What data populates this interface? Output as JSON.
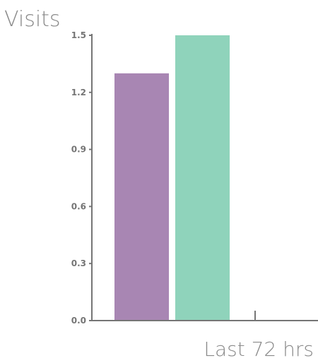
{
  "chart_data": {
    "type": "bar",
    "categories": [
      "",
      ""
    ],
    "values": [
      1.3,
      1.5
    ],
    "colors": [
      "#a886b3",
      "#8fd3bb"
    ],
    "title": "",
    "ylabel": "Visits",
    "xlabel": "Last 72 hrs",
    "ylim": [
      0,
      1.5
    ],
    "yticks": [
      "0.0",
      "0.3",
      "0.6",
      "0.9",
      "1.2",
      "1.5"
    ],
    "grid": false,
    "legend": "none"
  }
}
